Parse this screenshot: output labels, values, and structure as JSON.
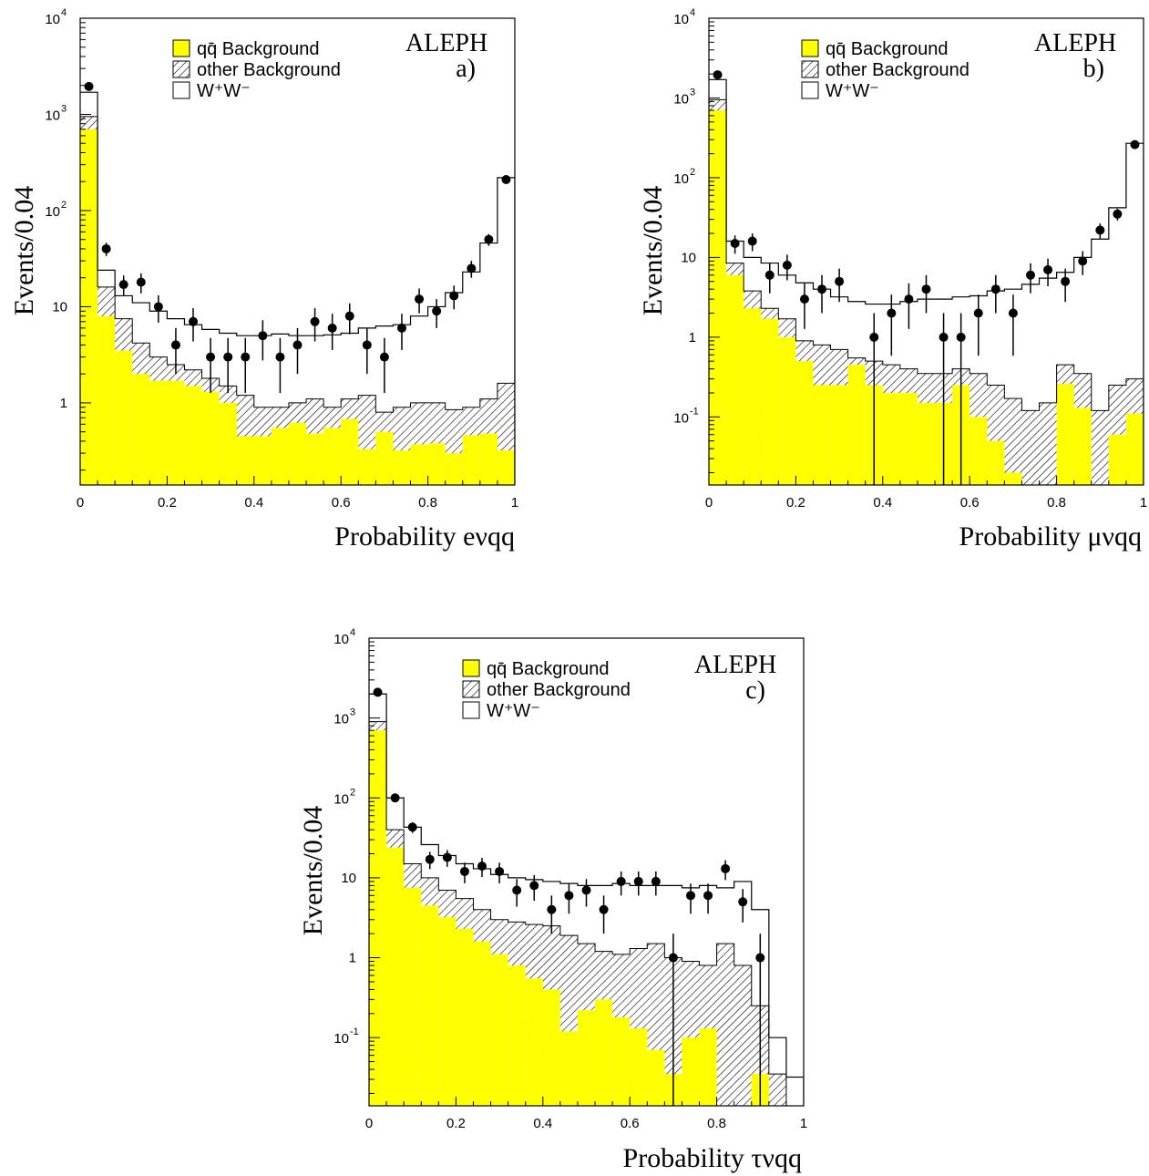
{
  "chart_data": [
    {
      "type": "histogram",
      "panel": "a)",
      "experiment": "ALEPH",
      "xlabel": "Probability eνqq",
      "ylabel": "Events/0.04",
      "xlim": [
        0,
        1
      ],
      "ylim": [
        0.14,
        10000
      ],
      "log_y": true,
      "x_ticks": [
        "0",
        "0.2",
        "0.4",
        "0.6",
        "0.8",
        "1"
      ],
      "bin_edges": [
        0,
        0.04,
        0.08,
        0.12,
        0.16,
        0.2,
        0.24,
        0.28,
        0.32,
        0.36,
        0.4,
        0.44,
        0.48,
        0.52,
        0.56,
        0.6,
        0.64,
        0.68,
        0.72,
        0.76,
        0.8,
        0.84,
        0.88,
        0.92,
        0.96,
        1.0
      ],
      "legend": [
        "qq̄  Background",
        "other Background",
        "W⁺W⁻"
      ],
      "series": [
        {
          "name": "qq̄  Background",
          "style": "filled",
          "color": "#ffff00",
          "values": [
            700,
            8,
            3.5,
            2.0,
            1.7,
            1.7,
            1.5,
            1.3,
            1.0,
            0.45,
            0.45,
            0.55,
            0.62,
            0.48,
            0.55,
            0.68,
            0.33,
            0.5,
            0.32,
            0.37,
            0.38,
            0.3,
            0.46,
            0.48,
            0.32
          ]
        },
        {
          "name": "other Background",
          "style": "hatched",
          "values": [
            950,
            16,
            7.5,
            4.2,
            3.0,
            2.5,
            2.2,
            1.8,
            1.5,
            1.2,
            0.9,
            0.9,
            1.0,
            1.1,
            0.9,
            1.1,
            1.2,
            0.8,
            0.9,
            1.0,
            1.0,
            0.85,
            0.9,
            1.1,
            1.6
          ]
        },
        {
          "name": "W⁺W⁻",
          "style": "outline",
          "values": [
            1700,
            24,
            13,
            11,
            9,
            7.5,
            6.5,
            5.8,
            5.3,
            5.0,
            5.0,
            5.2,
            5.0,
            5.0,
            5.1,
            5.3,
            6.0,
            6.3,
            6.5,
            8.0,
            10,
            14,
            23,
            46,
            220
          ]
        },
        {
          "name": "Data",
          "style": "points",
          "x": [
            0.02,
            0.06,
            0.1,
            0.14,
            0.18,
            0.22,
            0.26,
            0.3,
            0.34,
            0.38,
            0.42,
            0.46,
            0.5,
            0.54,
            0.58,
            0.62,
            0.66,
            0.7,
            0.74,
            0.78,
            0.82,
            0.86,
            0.9,
            0.94,
            0.98
          ],
          "y": [
            1950,
            40,
            17,
            18,
            10,
            4,
            7,
            3,
            3,
            3,
            5,
            3,
            4,
            7,
            6,
            8,
            4,
            3,
            6,
            12,
            9,
            13,
            25,
            50,
            210
          ]
        }
      ]
    },
    {
      "type": "histogram",
      "panel": "b)",
      "experiment": "ALEPH",
      "xlabel": "Probability μνqq",
      "ylabel": "Events/0.04",
      "xlim": [
        0,
        1
      ],
      "ylim": [
        0.014,
        10000
      ],
      "log_y": true,
      "x_ticks": [
        "0",
        "0.2",
        "0.4",
        "0.6",
        "0.8",
        "1"
      ],
      "bin_edges": [
        0,
        0.04,
        0.08,
        0.12,
        0.16,
        0.2,
        0.24,
        0.28,
        0.32,
        0.36,
        0.4,
        0.44,
        0.48,
        0.52,
        0.56,
        0.6,
        0.64,
        0.68,
        0.72,
        0.76,
        0.8,
        0.84,
        0.88,
        0.92,
        0.96,
        1.0
      ],
      "legend": [
        "qq̄  Background",
        "other Background",
        "W⁺W⁻"
      ],
      "series": [
        {
          "name": "qq̄  Background",
          "style": "filled",
          "color": "#ffff00",
          "values": [
            700,
            6,
            2.3,
            1.7,
            1.0,
            0.5,
            0.25,
            0.25,
            0.45,
            0.25,
            0.2,
            0.2,
            0.15,
            0.15,
            0.25,
            0.1,
            0.05,
            0.02,
            0.0,
            0.0,
            0.26,
            0.13,
            0.0,
            0.06,
            0.11
          ]
        },
        {
          "name": "other Background",
          "style": "hatched",
          "values": [
            950,
            8.5,
            3.8,
            2.3,
            1.7,
            0.9,
            0.8,
            0.7,
            0.55,
            0.5,
            0.45,
            0.4,
            0.35,
            0.35,
            0.4,
            0.35,
            0.25,
            0.17,
            0.12,
            0.15,
            0.45,
            0.35,
            0.12,
            0.25,
            0.3
          ]
        },
        {
          "name": "W⁺W⁻",
          "style": "outline",
          "values": [
            1700,
            16,
            10,
            8.5,
            6.0,
            4.8,
            4.0,
            3.2,
            2.8,
            2.6,
            2.6,
            2.8,
            3.0,
            3.0,
            3.2,
            3.3,
            3.8,
            4.0,
            4.6,
            5.5,
            6.5,
            10,
            17,
            42,
            270
          ]
        },
        {
          "name": "Data",
          "style": "points",
          "x": [
            0.02,
            0.06,
            0.1,
            0.14,
            0.18,
            0.22,
            0.26,
            0.3,
            0.38,
            0.42,
            0.46,
            0.5,
            0.54,
            0.58,
            0.62,
            0.66,
            0.7,
            0.74,
            0.78,
            0.82,
            0.86,
            0.9,
            0.94,
            0.98
          ],
          "y": [
            1950,
            15,
            16,
            6,
            8,
            3,
            4,
            5,
            1,
            2,
            3,
            4,
            1,
            1,
            2,
            4,
            2,
            6,
            7,
            5,
            9,
            22,
            35,
            260
          ]
        }
      ]
    },
    {
      "type": "histogram",
      "panel": "c)",
      "experiment": "ALEPH",
      "xlabel": "Probability τνqq",
      "ylabel": "Events/0.04",
      "xlim": [
        0,
        1
      ],
      "ylim": [
        0.014,
        10000
      ],
      "log_y": true,
      "x_ticks": [
        "0",
        "0.2",
        "0.4",
        "0.6",
        "0.8",
        "1"
      ],
      "bin_edges": [
        0,
        0.04,
        0.08,
        0.12,
        0.16,
        0.2,
        0.24,
        0.28,
        0.32,
        0.36,
        0.4,
        0.44,
        0.48,
        0.52,
        0.56,
        0.6,
        0.64,
        0.68,
        0.72,
        0.76,
        0.8,
        0.84,
        0.88,
        0.92,
        0.96,
        1.0
      ],
      "legend": [
        "qq̄  Background",
        "other Background",
        "W⁺W⁻"
      ],
      "series": [
        {
          "name": "qq̄  Background",
          "style": "filled",
          "color": "#ffff00",
          "values": [
            700,
            24,
            7.5,
            4.5,
            3.2,
            2.3,
            1.6,
            1.1,
            0.8,
            0.55,
            0.4,
            0.12,
            0.22,
            0.3,
            0.18,
            0.13,
            0.07,
            0.035,
            0.1,
            0.13,
            0.0,
            0.0,
            0.035,
            0.0,
            0.0
          ]
        },
        {
          "name": "other Background",
          "style": "hatched",
          "values": [
            900,
            40,
            15,
            10,
            7,
            5.5,
            4.0,
            3.0,
            2.8,
            2.6,
            2.5,
            1.9,
            1.5,
            1.2,
            1.1,
            1.3,
            1.5,
            1.0,
            0.9,
            0.8,
            1.5,
            0.8,
            0.25,
            0.035,
            0.0
          ]
        },
        {
          "name": "W⁺W⁻",
          "style": "outline",
          "values": [
            2000,
            100,
            43,
            26,
            19,
            15,
            13,
            11,
            10,
            9.5,
            9.0,
            8.5,
            8.0,
            8.0,
            8.5,
            8.0,
            8.0,
            8.0,
            7.5,
            8.0,
            7.5,
            9.0,
            4.0,
            0.1,
            0.032
          ]
        },
        {
          "name": "Data",
          "style": "points",
          "x": [
            0.02,
            0.06,
            0.1,
            0.14,
            0.18,
            0.22,
            0.26,
            0.3,
            0.34,
            0.38,
            0.42,
            0.46,
            0.5,
            0.54,
            0.58,
            0.62,
            0.66,
            0.7,
            0.74,
            0.78,
            0.82,
            0.86,
            0.9
          ],
          "y": [
            2100,
            100,
            43,
            17,
            18,
            12,
            14,
            12,
            7,
            8,
            4,
            6,
            7,
            4,
            9,
            9,
            9,
            1,
            6,
            6,
            13,
            5,
            1
          ]
        }
      ]
    }
  ]
}
